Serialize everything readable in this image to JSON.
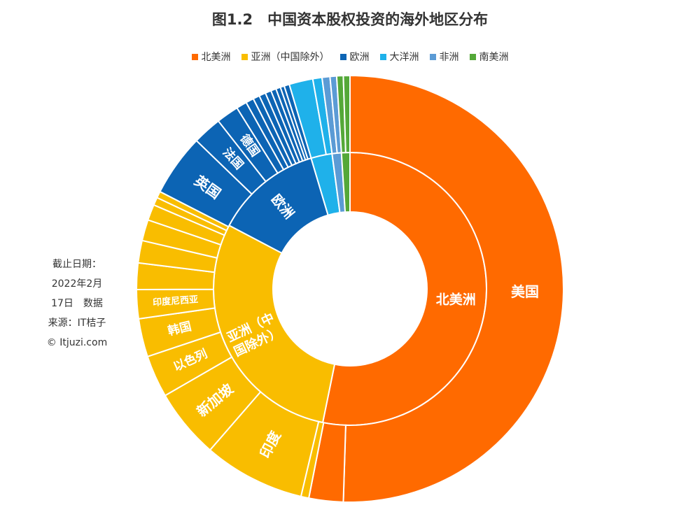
{
  "title": "图1.2　中国资本股权投资的海外地区分布",
  "note": [
    "截止日期：",
    "2022年2月",
    "17日　数据",
    "来源：IT桔子",
    "© Itjuzi.com"
  ],
  "colors": {
    "北美洲": "#ff6a00",
    "亚洲（中国除外）": "#f9bd00",
    "欧洲": "#0c64b4",
    "大洋洲": "#1fb1ea",
    "非洲": "#5b9bd5",
    "南美洲": "#54a838"
  },
  "chart_data": {
    "type": "sunburst",
    "title": "图1.2　中国资本股权投资的海外地区分布",
    "legend_position": "top",
    "inner": [
      {
        "name": "北美洲",
        "value": 53.2,
        "label": "北美洲"
      },
      {
        "name": "亚洲（中国除外）",
        "value": 29.5,
        "label": "亚洲（中国除外）"
      },
      {
        "name": "欧洲",
        "value": 12.7,
        "label": "欧洲"
      },
      {
        "name": "大洋洲",
        "value": 2.5,
        "label": ""
      },
      {
        "name": "非洲",
        "value": 1.1,
        "label": ""
      },
      {
        "name": "南美洲",
        "value": 1.0,
        "label": ""
      }
    ],
    "outer": [
      {
        "region": "北美洲",
        "name": "美国",
        "value": 50.6,
        "label": "美国"
      },
      {
        "region": "北美洲",
        "name": "",
        "value": 2.6,
        "label": ""
      },
      {
        "region": "亚洲（中国除外）",
        "name": "",
        "value": 0.6,
        "label": ""
      },
      {
        "region": "亚洲（中国除外）",
        "name": "印度",
        "value": 7.7,
        "label": "印度"
      },
      {
        "region": "亚洲（中国除外）",
        "name": "新加坡",
        "value": 5.3,
        "label": "新加坡"
      },
      {
        "region": "亚洲（中国除外）",
        "name": "以色列",
        "value": 3.2,
        "label": "以色列"
      },
      {
        "region": "亚洲（中国除外）",
        "name": "韩国",
        "value": 2.9,
        "label": "韩国"
      },
      {
        "region": "亚洲（中国除外）",
        "name": "印度尼西亚",
        "value": 2.2,
        "label": "印度尼西亚"
      },
      {
        "region": "亚洲（中国除外）",
        "name": "",
        "value": 2.0,
        "label": ""
      },
      {
        "region": "亚洲（中国除外）",
        "name": "",
        "value": 1.7,
        "label": ""
      },
      {
        "region": "亚洲（中国除外）",
        "name": "",
        "value": 1.6,
        "label": ""
      },
      {
        "region": "亚洲（中国除外）",
        "name": "",
        "value": 1.2,
        "label": ""
      },
      {
        "region": "亚洲（中国除外）",
        "name": "",
        "value": 0.6,
        "label": ""
      },
      {
        "region": "亚洲（中国除外）",
        "name": "",
        "value": 0.5,
        "label": ""
      },
      {
        "region": "欧洲",
        "name": "英国",
        "value": 4.7,
        "label": "英国"
      },
      {
        "region": "欧洲",
        "name": "法国",
        "value": 2.2,
        "label": "法国"
      },
      {
        "region": "欧洲",
        "name": "德国",
        "value": 1.7,
        "label": "德国"
      },
      {
        "region": "欧洲",
        "name": "",
        "value": 0.8,
        "label": ""
      },
      {
        "region": "欧洲",
        "name": "",
        "value": 0.6,
        "label": ""
      },
      {
        "region": "欧洲",
        "name": "",
        "value": 0.5,
        "label": ""
      },
      {
        "region": "欧洲",
        "name": "",
        "value": 0.5,
        "label": ""
      },
      {
        "region": "欧洲",
        "name": "",
        "value": 0.45,
        "label": ""
      },
      {
        "region": "欧洲",
        "name": "",
        "value": 0.4,
        "label": ""
      },
      {
        "region": "欧洲",
        "name": "",
        "value": 0.35,
        "label": ""
      },
      {
        "region": "欧洲",
        "name": "",
        "value": 0.3,
        "label": ""
      },
      {
        "region": "欧洲",
        "name": "",
        "value": 0.4,
        "label": ""
      },
      {
        "region": "大洋洲",
        "name": "",
        "value": 1.8,
        "label": ""
      },
      {
        "region": "大洋洲",
        "name": "",
        "value": 0.7,
        "label": ""
      },
      {
        "region": "非洲",
        "name": "",
        "value": 0.6,
        "label": ""
      },
      {
        "region": "非洲",
        "name": "",
        "value": 0.5,
        "label": ""
      },
      {
        "region": "南美洲",
        "name": "",
        "value": 0.5,
        "label": ""
      },
      {
        "region": "南美洲",
        "name": "",
        "value": 0.5,
        "label": ""
      }
    ]
  }
}
